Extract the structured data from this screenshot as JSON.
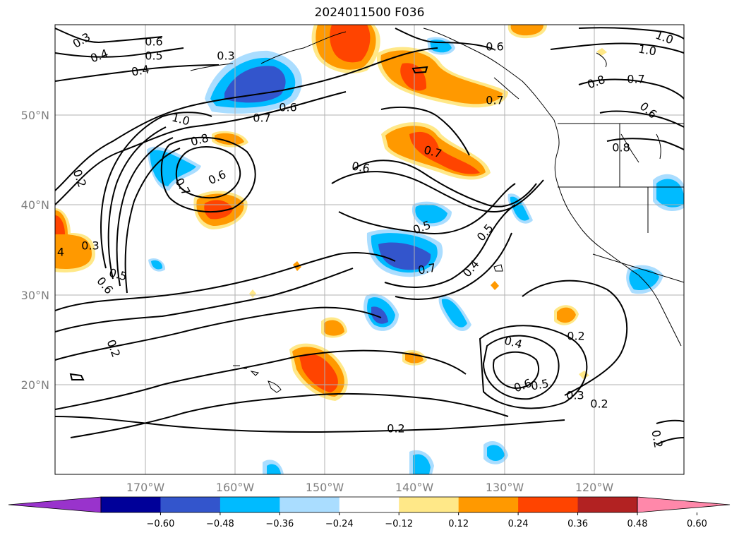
{
  "title": "2024011500 F036",
  "map": {
    "lat_labels": [
      "50°N",
      "40°N",
      "30°N",
      "20°N"
    ],
    "lon_labels": [
      "170°W",
      "160°W",
      "150°W",
      "140°W",
      "130°W",
      "120°W"
    ]
  },
  "colorbar": {
    "colors": [
      "#9933cc",
      "#000099",
      "#3355cc",
      "#00bbff",
      "#aaddff",
      "#ffffff",
      "#ffe888",
      "#ff9900",
      "#ff4400",
      "#b22222",
      "#ff88aa"
    ],
    "tick_labels": [
      "−0.60",
      "−0.48",
      "−0.36",
      "−0.24",
      "−0.12",
      "0.12",
      "0.24",
      "0.36",
      "0.48",
      "0.60"
    ]
  },
  "contour_labels": [
    {
      "text": "0.3"
    },
    {
      "text": "0.4"
    },
    {
      "text": "0.6"
    },
    {
      "text": "0.5"
    },
    {
      "text": "0.4"
    },
    {
      "text": "0.3"
    },
    {
      "text": "0.6"
    },
    {
      "text": "0.7"
    },
    {
      "text": "1.0"
    },
    {
      "text": "0.8"
    },
    {
      "text": "0.6"
    },
    {
      "text": "0.7"
    },
    {
      "text": "0.2"
    },
    {
      "text": "0.3"
    },
    {
      "text": "4"
    },
    {
      "text": "0.5"
    },
    {
      "text": "0.6"
    },
    {
      "text": "0.2"
    },
    {
      "text": "0.6"
    },
    {
      "text": "0.7"
    },
    {
      "text": "0.5"
    },
    {
      "text": "0.7"
    },
    {
      "text": "0.5"
    },
    {
      "text": "0.4"
    },
    {
      "text": "0.6"
    },
    {
      "text": "0.7"
    },
    {
      "text": "1.0"
    },
    {
      "text": "1.0"
    },
    {
      "text": "0.8"
    },
    {
      "text": "0.7"
    },
    {
      "text": "0.6"
    },
    {
      "text": "0.8"
    },
    {
      "text": "0.4"
    },
    {
      "text": "0.2"
    },
    {
      "text": "0.6"
    },
    {
      "text": "0.5"
    },
    {
      "text": "0.3"
    },
    {
      "text": "0.2"
    },
    {
      "text": "0.2"
    },
    {
      "text": "0.2"
    }
  ]
}
